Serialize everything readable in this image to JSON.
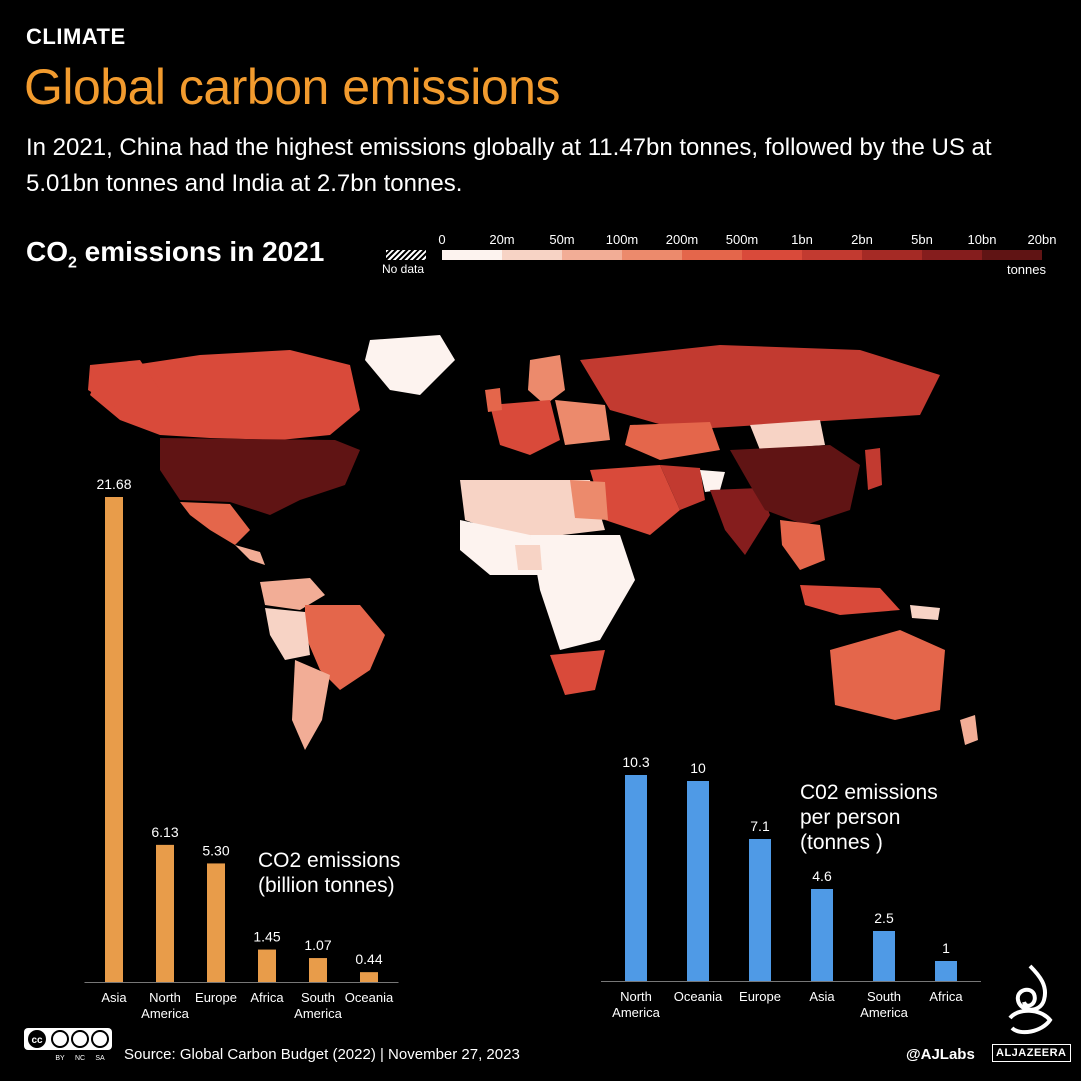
{
  "header": {
    "kicker": "CLIMATE",
    "title": "Global carbon emissions",
    "subtitle": "In 2021, China had the highest emissions globally at 11.47bn tonnes, followed by the US at 5.01bn tonnes and India at 2.7bn tonnes."
  },
  "map": {
    "heading_main": "CO",
    "heading_sub": "2",
    "heading_rest": " emissions in 2021",
    "legend": {
      "no_data_label": "No data",
      "units": "tonnes",
      "ticks": [
        "0",
        "20m",
        "50m",
        "100m",
        "200m",
        "500m",
        "1bn",
        "2bn",
        "5bn",
        "10bn",
        "20bn"
      ],
      "colors": [
        "#fdf3ef",
        "#f7d3c5",
        "#f2ad96",
        "#ec8a6c",
        "#e4664b",
        "#d94a3a",
        "#c23a30",
        "#a52a25",
        "#851d1d",
        "#601414"
      ]
    }
  },
  "chart_data": [
    {
      "type": "bar",
      "title": "CO2 emissions\n(billion tonnes)",
      "categories": [
        "Asia",
        "North America",
        "Europe",
        "Africa",
        "South America",
        "Oceania"
      ],
      "values": [
        21.68,
        6.13,
        5.3,
        1.45,
        1.07,
        0.44
      ],
      "value_labels": [
        "21.68",
        "6.13",
        "5.30",
        "1.45",
        "1.07",
        "0.44"
      ],
      "color": "#e89c4a",
      "ylim": [
        0,
        21.68
      ]
    },
    {
      "type": "bar",
      "title": "C02 emissions\nper person\n(tonnes )",
      "categories": [
        "North America",
        "Oceania",
        "Europe",
        "Asia",
        "South America",
        "Africa"
      ],
      "values": [
        10.3,
        10,
        7.1,
        4.6,
        2.5,
        1
      ],
      "value_labels": [
        "10.3",
        "10",
        "7.1",
        "4.6",
        "2.5",
        "1"
      ],
      "color": "#4f9ae6",
      "ylim": [
        0,
        10.3
      ]
    }
  ],
  "footer": {
    "cc_labels": [
      "BY",
      "NC",
      "SA"
    ],
    "source": "Source: Global Carbon Budget (2022)  |  November 27, 2023",
    "handle": "@AJLabs",
    "brand": "ALJAZEERA"
  }
}
